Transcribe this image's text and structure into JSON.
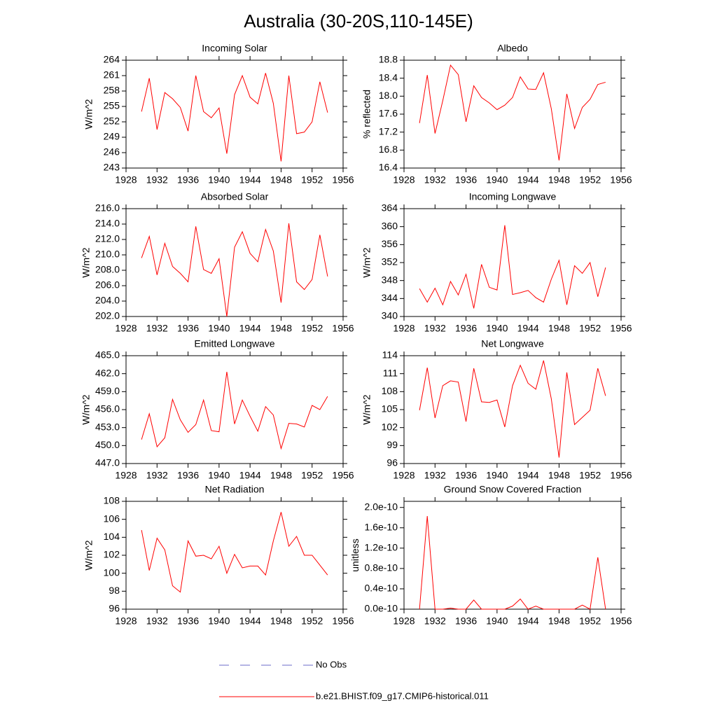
{
  "title": "Australia (30-20S,110-145E)",
  "legend": [
    {
      "label": "No Obs",
      "color": "#6b6bc8",
      "dash": true
    },
    {
      "label": "b.e21.BHIST.f09_g17.CMIP6-historical.011",
      "color": "#ff0000",
      "dash": false
    }
  ],
  "chart_data": [
    {
      "type": "line",
      "title": "Incoming Solar",
      "ylabel": "W/m^2",
      "color": "#ff0000",
      "x": [
        1930,
        1931,
        1932,
        1933,
        1934,
        1935,
        1936,
        1937,
        1938,
        1939,
        1940,
        1941,
        1942,
        1943,
        1944,
        1945,
        1946,
        1947,
        1948,
        1949,
        1950,
        1951,
        1952,
        1953,
        1954
      ],
      "values": [
        254,
        260.5,
        250.5,
        257.7,
        256.5,
        254.8,
        250.2,
        261,
        254,
        252.8,
        254.7,
        245.8,
        257.3,
        261,
        256.8,
        255.5,
        261.5,
        255.6,
        244.3,
        261,
        249.7,
        250,
        252,
        259.8,
        253.8
      ],
      "xlim": [
        1928,
        1956
      ],
      "xticks": [
        1928,
        1932,
        1936,
        1940,
        1944,
        1948,
        1952,
        1956
      ],
      "ylim": [
        243,
        264
      ],
      "yticks": [
        243,
        246,
        249,
        252,
        255,
        258,
        261,
        264
      ]
    },
    {
      "type": "line",
      "title": "Albedo",
      "ylabel": "% reflected",
      "color": "#ff0000",
      "x": [
        1930,
        1931,
        1932,
        1933,
        1934,
        1935,
        1936,
        1937,
        1938,
        1939,
        1940,
        1941,
        1942,
        1943,
        1944,
        1945,
        1946,
        1947,
        1948,
        1949,
        1950,
        1951,
        1952,
        1953,
        1954
      ],
      "values": [
        17.4,
        18.47,
        17.17,
        17.9,
        18.69,
        18.48,
        17.43,
        18.23,
        17.97,
        17.85,
        17.7,
        17.8,
        17.97,
        18.43,
        18.16,
        18.15,
        18.52,
        17.72,
        16.57,
        18.05,
        17.28,
        17.75,
        17.93,
        18.26,
        18.31
      ],
      "xlim": [
        1928,
        1956
      ],
      "xticks": [
        1928,
        1932,
        1936,
        1940,
        1944,
        1948,
        1952,
        1956
      ],
      "ylim": [
        16.4,
        18.8
      ],
      "yticks": [
        16.4,
        16.8,
        17.2,
        17.6,
        {
          "value": 18,
          "label": "18.0"
        },
        18.4,
        18.8
      ]
    },
    {
      "type": "line",
      "title": "Absorbed Solar",
      "ylabel": "W/m^2",
      "color": "#ff0000",
      "x": [
        1930,
        1931,
        1932,
        1933,
        1934,
        1935,
        1936,
        1937,
        1938,
        1939,
        1940,
        1941,
        1942,
        1943,
        1944,
        1945,
        1946,
        1947,
        1948,
        1949,
        1950,
        1951,
        1952,
        1953,
        1954
      ],
      "values": [
        209.6,
        212.4,
        207.4,
        211.5,
        208.5,
        207.6,
        206.5,
        213.7,
        208.1,
        207.6,
        209.5,
        202,
        211,
        213,
        210.2,
        209.1,
        213.3,
        210.5,
        203.8,
        214.1,
        206.5,
        205.5,
        206.8,
        212.6,
        207.2
      ],
      "xlim": [
        1928,
        1956
      ],
      "xticks": [
        1928,
        1932,
        1936,
        1940,
        1944,
        1948,
        1952,
        1956
      ],
      "ylim": [
        202,
        216
      ],
      "yticks": [
        {
          "value": 202,
          "label": "202.0"
        },
        {
          "value": 204,
          "label": "204.0"
        },
        {
          "value": 206,
          "label": "206.0"
        },
        {
          "value": 208,
          "label": "208.0"
        },
        {
          "value": 210,
          "label": "210.0"
        },
        {
          "value": 212,
          "label": "212.0"
        },
        {
          "value": 214,
          "label": "214.0"
        },
        {
          "value": 216,
          "label": "216.0"
        }
      ]
    },
    {
      "type": "line",
      "title": "Incoming Longwave",
      "ylabel": "W/m^2",
      "color": "#ff0000",
      "x": [
        1930,
        1931,
        1932,
        1933,
        1934,
        1935,
        1936,
        1937,
        1938,
        1939,
        1940,
        1941,
        1942,
        1943,
        1944,
        1945,
        1946,
        1947,
        1948,
        1949,
        1950,
        1951,
        1952,
        1953,
        1954
      ],
      "values": [
        346.2,
        343.2,
        346.3,
        342.6,
        347.8,
        344.8,
        349.4,
        341.8,
        351.6,
        346.5,
        345.9,
        360.3,
        344.9,
        345.3,
        345.8,
        344.2,
        343.2,
        348.3,
        352.5,
        342.6,
        351.3,
        349.6,
        352,
        344.4,
        350.9
      ],
      "xlim": [
        1928,
        1956
      ],
      "xticks": [
        1928,
        1932,
        1936,
        1940,
        1944,
        1948,
        1952,
        1956
      ],
      "ylim": [
        340,
        364
      ],
      "yticks": [
        340,
        344,
        348,
        352,
        356,
        360,
        364
      ]
    },
    {
      "type": "line",
      "title": "Emitted Longwave",
      "ylabel": "W/m^2",
      "color": "#ff0000",
      "x": [
        1930,
        1931,
        1932,
        1933,
        1934,
        1935,
        1936,
        1937,
        1938,
        1939,
        1940,
        1941,
        1942,
        1943,
        1944,
        1945,
        1946,
        1947,
        1948,
        1949,
        1950,
        1951,
        1952,
        1953,
        1954
      ],
      "values": [
        451,
        455.3,
        449.8,
        451.3,
        457.7,
        454.3,
        452.2,
        453.5,
        457.6,
        452.5,
        452.3,
        462.3,
        453.6,
        457.6,
        454.9,
        452.4,
        456.5,
        455.1,
        449.5,
        453.7,
        453.6,
        453.1,
        456.7,
        456,
        458.2
      ],
      "xlim": [
        1928,
        1956
      ],
      "xticks": [
        1928,
        1932,
        1936,
        1940,
        1944,
        1948,
        1952,
        1956
      ],
      "ylim": [
        447,
        465
      ],
      "yticks": [
        {
          "value": 447,
          "label": "447.0"
        },
        {
          "value": 450,
          "label": "450.0"
        },
        {
          "value": 453,
          "label": "453.0"
        },
        {
          "value": 456,
          "label": "456.0"
        },
        {
          "value": 459,
          "label": "459.0"
        },
        {
          "value": 462,
          "label": "462.0"
        },
        {
          "value": 465,
          "label": "465.0"
        }
      ]
    },
    {
      "type": "line",
      "title": "Net Longwave",
      "ylabel": "W/m^2",
      "color": "#ff0000",
      "x": [
        1930,
        1931,
        1932,
        1933,
        1934,
        1935,
        1936,
        1937,
        1938,
        1939,
        1940,
        1941,
        1942,
        1943,
        1944,
        1945,
        1946,
        1947,
        1948,
        1949,
        1950,
        1951,
        1952,
        1953,
        1954
      ],
      "values": [
        104.9,
        112,
        103.6,
        109,
        109.8,
        109.6,
        103,
        111.9,
        106.3,
        106.2,
        106.6,
        102.1,
        109,
        112.4,
        109.4,
        108.4,
        113.2,
        106.8,
        97,
        111.2,
        102.5,
        103.7,
        104.9,
        111.9,
        107.3
      ],
      "xlim": [
        1928,
        1956
      ],
      "xticks": [
        1928,
        1932,
        1936,
        1940,
        1944,
        1948,
        1952,
        1956
      ],
      "ylim": [
        96,
        114
      ],
      "yticks": [
        96,
        99,
        102,
        105,
        108,
        111,
        114
      ]
    },
    {
      "type": "line",
      "title": "Net Radiation",
      "ylabel": "W/m^2",
      "color": "#ff0000",
      "x": [
        1930,
        1931,
        1932,
        1933,
        1934,
        1935,
        1936,
        1937,
        1938,
        1939,
        1940,
        1941,
        1942,
        1943,
        1944,
        1945,
        1946,
        1947,
        1948,
        1949,
        1950,
        1951,
        1952,
        1953,
        1954
      ],
      "values": [
        104.8,
        100.3,
        103.9,
        102.6,
        98.6,
        97.9,
        103.6,
        101.9,
        102,
        101.6,
        103,
        100,
        102.1,
        100.6,
        100.8,
        100.8,
        99.8,
        103.6,
        106.8,
        103,
        104.1,
        102,
        102,
        100.9,
        99.8
      ],
      "xlim": [
        1928,
        1956
      ],
      "xticks": [
        1928,
        1932,
        1936,
        1940,
        1944,
        1948,
        1952,
        1956
      ],
      "ylim": [
        96,
        108
      ],
      "yticks": [
        96,
        98,
        100,
        102,
        104,
        106,
        108
      ]
    },
    {
      "type": "line",
      "title": "Ground Snow Covered Fraction",
      "ylabel": "unitless",
      "color": "#ff0000",
      "x": [
        1930,
        1931,
        1932,
        1933,
        1934,
        1935,
        1936,
        1937,
        1938,
        1939,
        1940,
        1941,
        1942,
        1943,
        1944,
        1945,
        1946,
        1947,
        1948,
        1949,
        1950,
        1951,
        1952,
        1953,
        1954
      ],
      "values": [
        0,
        1.83e-10,
        0,
        0,
        2e-12,
        0,
        0,
        1.8e-11,
        0,
        0,
        0,
        0,
        6e-12,
        2e-11,
        0,
        6e-12,
        0,
        0,
        0,
        0,
        0,
        8e-12,
        0,
        1.02e-10,
        0
      ],
      "xlim": [
        1928,
        1956
      ],
      "xticks": [
        1928,
        1932,
        1936,
        1940,
        1944,
        1948,
        1952,
        1956
      ],
      "ylim": [
        0,
        2.12e-10
      ],
      "yticks": [
        {
          "value": 0,
          "label": "0.0e-10"
        },
        {
          "value": 4e-11,
          "label": "0.4e-10"
        },
        {
          "value": 8e-11,
          "label": "0.8e-10"
        },
        {
          "value": 1.2e-10,
          "label": "1.2e-10"
        },
        {
          "value": 1.6e-10,
          "label": "1.6e-10"
        },
        {
          "value": 2e-10,
          "label": "2.0e-10"
        }
      ]
    }
  ]
}
